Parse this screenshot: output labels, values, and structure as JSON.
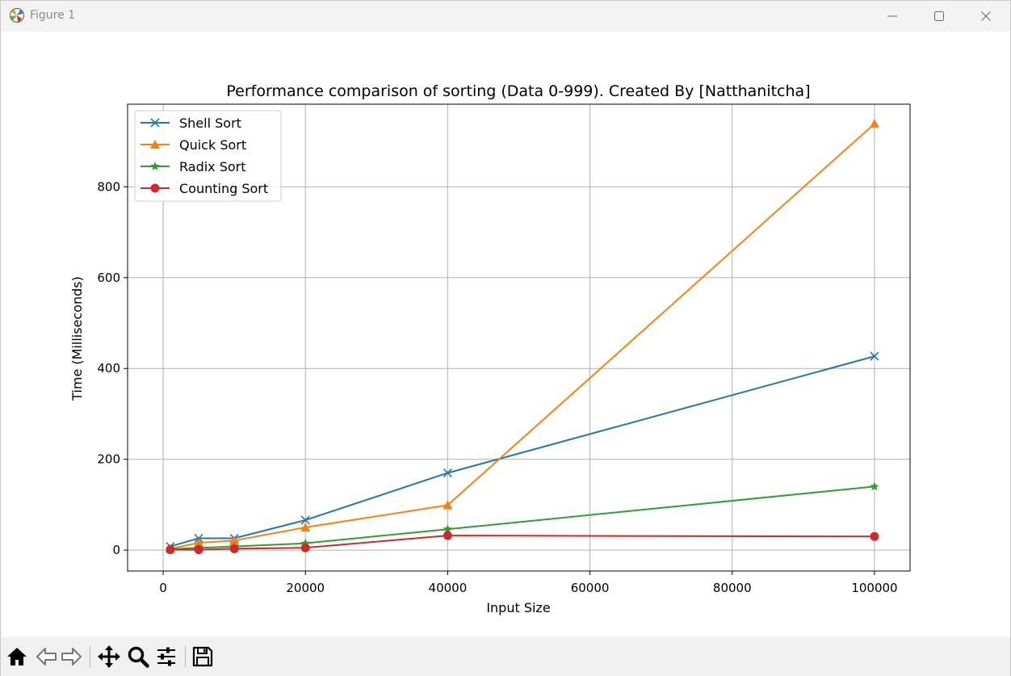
{
  "window": {
    "title": "Figure 1"
  },
  "toolbar": {
    "buttons": [
      {
        "name": "home-button",
        "icon": "home-icon"
      },
      {
        "name": "back-button",
        "icon": "back-arrow-icon"
      },
      {
        "name": "forward-button",
        "icon": "forward-arrow-icon"
      },
      {
        "name": "pan-button",
        "icon": "move-icon"
      },
      {
        "name": "zoom-button",
        "icon": "zoom-icon"
      },
      {
        "name": "configure-subplots-button",
        "icon": "sliders-icon"
      },
      {
        "name": "save-button",
        "icon": "save-icon"
      }
    ]
  },
  "chart_data": {
    "type": "line",
    "title": "Performance comparison of sorting (Data 0-999). Created By [Natthanitcha]",
    "xlabel": "Input Size",
    "ylabel": "Time (Milliseconds)",
    "xlim": [
      -5000,
      105000
    ],
    "ylim": [
      -46,
      982
    ],
    "xticks": [
      0,
      20000,
      40000,
      60000,
      80000,
      100000
    ],
    "yticks": [
      0,
      200,
      400,
      600,
      800
    ],
    "grid": true,
    "legend_position": "top-left",
    "x": [
      1000,
      5000,
      10000,
      20000,
      40000,
      100000
    ],
    "series": [
      {
        "name": "Shell Sort",
        "color": "#1f77b4",
        "marker": "x",
        "values": [
          8,
          26,
          26,
          66,
          170,
          427
        ]
      },
      {
        "name": "Quick Sort",
        "color": "#ff7f0e",
        "marker": "triangle",
        "values": [
          3,
          16,
          21,
          50,
          99,
          939
        ]
      },
      {
        "name": "Radix Sort",
        "color": "#2ca02c",
        "marker": "star",
        "values": [
          2,
          5,
          8,
          15,
          46,
          140
        ]
      },
      {
        "name": "Counting Sort",
        "color": "#d62728",
        "marker": "circle",
        "values": [
          1,
          1,
          3,
          5,
          32,
          30
        ]
      }
    ]
  }
}
